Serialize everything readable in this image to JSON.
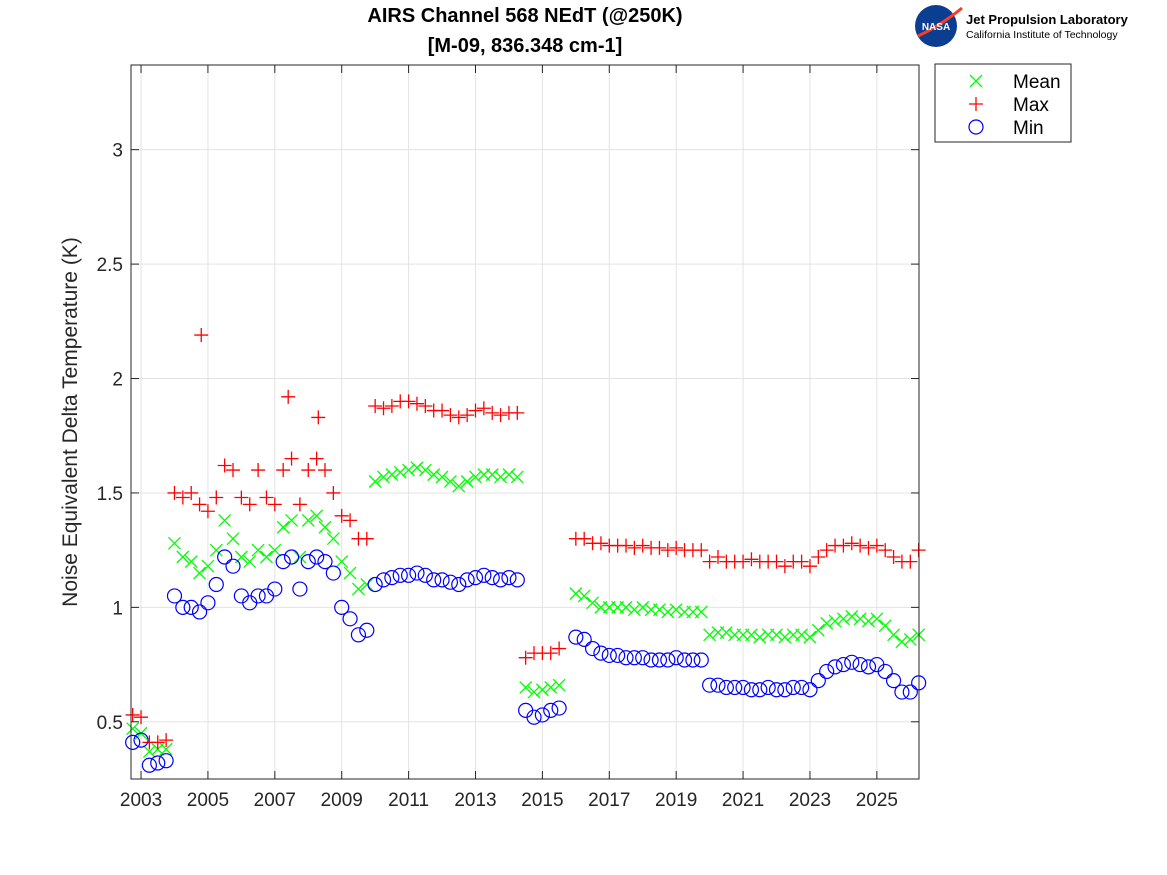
{
  "chart_data": {
    "type": "scatter",
    "title": [
      "AIRS Channel 568 NEdT (@250K)",
      "[M-09, 836.348 cm-1]"
    ],
    "xlabel": "",
    "ylabel": "Noise Equivalent Delta Temperature (K)",
    "xlim": [
      2002.7,
      2026.26
    ],
    "ylim": [
      0.25,
      3.37
    ],
    "xticks": [
      2003,
      2005,
      2007,
      2009,
      2011,
      2013,
      2015,
      2017,
      2019,
      2021,
      2023,
      2025
    ],
    "xtick_labels": [
      "2003",
      "2005",
      "2007",
      "2009",
      "2011",
      "2013",
      "2015",
      "2017",
      "2019",
      "2021",
      "2023",
      "2025"
    ],
    "yticks": [
      0.5,
      1,
      1.5,
      2,
      2.5,
      3
    ],
    "ytick_labels": [
      "0.5",
      "1",
      "1.5",
      "2",
      "2.5",
      "3"
    ],
    "grid": true,
    "legend_position": "outside-top-right",
    "x": [
      2002.75,
      2003,
      2003.25,
      2003.5,
      2003.75,
      2004,
      2004.25,
      2004.5,
      2004.75,
      2005,
      2005.25,
      2005.5,
      2005.75,
      2006,
      2006.25,
      2006.5,
      2006.75,
      2007,
      2007.25,
      2007.5,
      2007.75,
      2008,
      2008.25,
      2008.5,
      2008.75,
      2009,
      2009.25,
      2009.5,
      2009.75,
      2010,
      2010.25,
      2010.5,
      2010.75,
      2011,
      2011.25,
      2011.5,
      2011.75,
      2012,
      2012.25,
      2012.5,
      2012.75,
      2013,
      2013.25,
      2013.5,
      2013.75,
      2014,
      2014.25,
      2014.5,
      2014.75,
      2015,
      2015.25,
      2015.5,
      2015.75,
      2016,
      2016.25,
      2016.5,
      2016.75,
      2017,
      2017.25,
      2017.5,
      2017.75,
      2018,
      2018.25,
      2018.5,
      2018.75,
      2019,
      2019.25,
      2019.5,
      2019.75,
      2020,
      2020.25,
      2020.5,
      2020.75,
      2021,
      2021.25,
      2021.5,
      2021.75,
      2022,
      2022.25,
      2022.5,
      2022.75,
      2023,
      2023.25,
      2023.5,
      2023.75,
      2024,
      2024.25,
      2024.5,
      2024.75,
      2025,
      2025.25,
      2025.5,
      2025.75,
      2026,
      2026.25
    ],
    "series": [
      {
        "name": "Mean",
        "marker": "x",
        "color": "#00ff00",
        "values": [
          0.47,
          0.45,
          0.37,
          0.38,
          0.38,
          1.28,
          1.22,
          1.2,
          1.15,
          1.18,
          1.25,
          1.38,
          1.3,
          1.22,
          1.2,
          1.25,
          1.22,
          1.25,
          1.35,
          1.38,
          1.22,
          1.38,
          1.4,
          1.35,
          1.3,
          1.2,
          1.15,
          1.08,
          1.1,
          1.55,
          1.57,
          1.58,
          1.59,
          1.6,
          1.61,
          1.6,
          1.58,
          1.57,
          1.55,
          1.53,
          1.55,
          1.57,
          1.58,
          1.58,
          1.57,
          1.58,
          1.57,
          0.65,
          0.63,
          0.64,
          0.65,
          0.66,
          null,
          1.06,
          1.05,
          1.02,
          1.0,
          1.0,
          1.0,
          1.0,
          0.99,
          1.0,
          0.99,
          0.99,
          0.98,
          0.99,
          0.98,
          0.98,
          0.98,
          0.88,
          0.89,
          0.89,
          0.88,
          0.88,
          0.88,
          0.87,
          0.88,
          0.88,
          0.87,
          0.88,
          0.88,
          0.87,
          0.9,
          0.93,
          0.94,
          0.95,
          0.96,
          0.95,
          0.94,
          0.95,
          0.92,
          0.88,
          0.85,
          0.86,
          0.88
        ]
      },
      {
        "name": "Max",
        "marker": "+",
        "color": "#ff0000",
        "values": [
          0.53,
          0.52,
          0.41,
          0.41,
          0.42,
          1.5,
          1.48,
          1.5,
          1.45,
          1.42,
          1.48,
          1.62,
          1.6,
          1.48,
          1.45,
          1.6,
          1.48,
          1.45,
          1.6,
          1.65,
          1.45,
          1.6,
          1.65,
          1.6,
          1.5,
          1.4,
          1.38,
          1.3,
          1.3,
          1.88,
          1.87,
          1.88,
          1.9,
          1.9,
          1.89,
          1.88,
          1.86,
          1.86,
          1.84,
          1.83,
          1.84,
          1.86,
          1.87,
          1.85,
          1.84,
          1.85,
          1.85,
          0.78,
          0.8,
          0.8,
          0.8,
          0.82,
          null,
          1.3,
          1.3,
          1.28,
          1.28,
          1.27,
          1.27,
          1.27,
          1.26,
          1.27,
          1.26,
          1.26,
          1.25,
          1.26,
          1.25,
          1.25,
          1.25,
          1.2,
          1.22,
          1.2,
          1.2,
          1.2,
          1.21,
          1.2,
          1.2,
          1.2,
          1.18,
          1.2,
          1.2,
          1.18,
          1.22,
          1.25,
          1.27,
          1.27,
          1.28,
          1.27,
          1.26,
          1.27,
          1.25,
          1.22,
          1.2,
          1.2,
          1.25
        ],
        "outliers": [
          {
            "x": 2004.8,
            "y": 2.19
          },
          {
            "x": 2007.4,
            "y": 1.92
          },
          {
            "x": 2008.3,
            "y": 1.83
          }
        ]
      },
      {
        "name": "Min",
        "marker": "o",
        "color": "#0000ff",
        "values": [
          0.41,
          0.42,
          0.31,
          0.32,
          0.33,
          1.05,
          1.0,
          1.0,
          0.98,
          1.02,
          1.1,
          1.22,
          1.18,
          1.05,
          1.02,
          1.05,
          1.05,
          1.08,
          1.2,
          1.22,
          1.08,
          1.2,
          1.22,
          1.2,
          1.15,
          1.0,
          0.95,
          0.88,
          0.9,
          1.1,
          1.12,
          1.13,
          1.14,
          1.14,
          1.15,
          1.14,
          1.12,
          1.12,
          1.11,
          1.1,
          1.12,
          1.13,
          1.14,
          1.13,
          1.12,
          1.13,
          1.12,
          0.55,
          0.52,
          0.53,
          0.55,
          0.56,
          null,
          0.87,
          0.86,
          0.82,
          0.8,
          0.79,
          0.79,
          0.78,
          0.78,
          0.78,
          0.77,
          0.77,
          0.77,
          0.78,
          0.77,
          0.77,
          0.77,
          0.66,
          0.66,
          0.65,
          0.65,
          0.65,
          0.64,
          0.64,
          0.65,
          0.64,
          0.64,
          0.65,
          0.65,
          0.64,
          0.68,
          0.72,
          0.74,
          0.75,
          0.76,
          0.75,
          0.74,
          0.75,
          0.72,
          0.68,
          0.63,
          0.63,
          0.67
        ]
      }
    ]
  },
  "logo": {
    "agency": "NASA",
    "line1": "Jet Propulsion Laboratory",
    "line2": "California Institute of Technology"
  }
}
